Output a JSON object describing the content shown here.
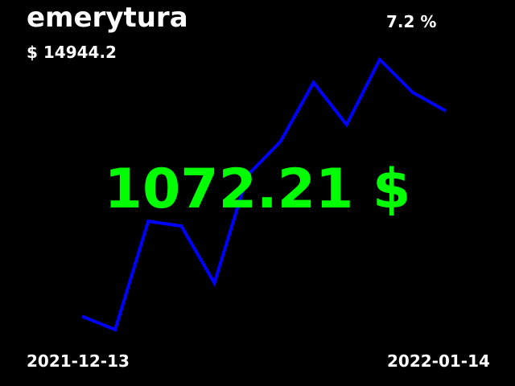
{
  "header": {
    "title": "emerytura",
    "amount": "$ 14944.2",
    "percent": "7.2 %"
  },
  "footer": {
    "start_date": "2021-12-13",
    "end_date": "2022-01-14"
  },
  "highlight": {
    "text": "1072.21 $",
    "color": "#00ff00"
  },
  "colors": {
    "background": "#000000",
    "line": "#0000ff",
    "text": "#ffffff"
  },
  "chart_data": {
    "type": "line",
    "title": "",
    "xlabel": "",
    "ylabel": "",
    "x_start": "2021-12-13",
    "x_end": "2022-01-14",
    "grid": false,
    "axes_visible": false,
    "series": [
      {
        "values": [
          0.097,
          0.0,
          0.789,
          0.754,
          0.339,
          1.123,
          1.368,
          1.798,
          1.491,
          1.965,
          1.725,
          1.591
        ]
      }
    ]
  }
}
